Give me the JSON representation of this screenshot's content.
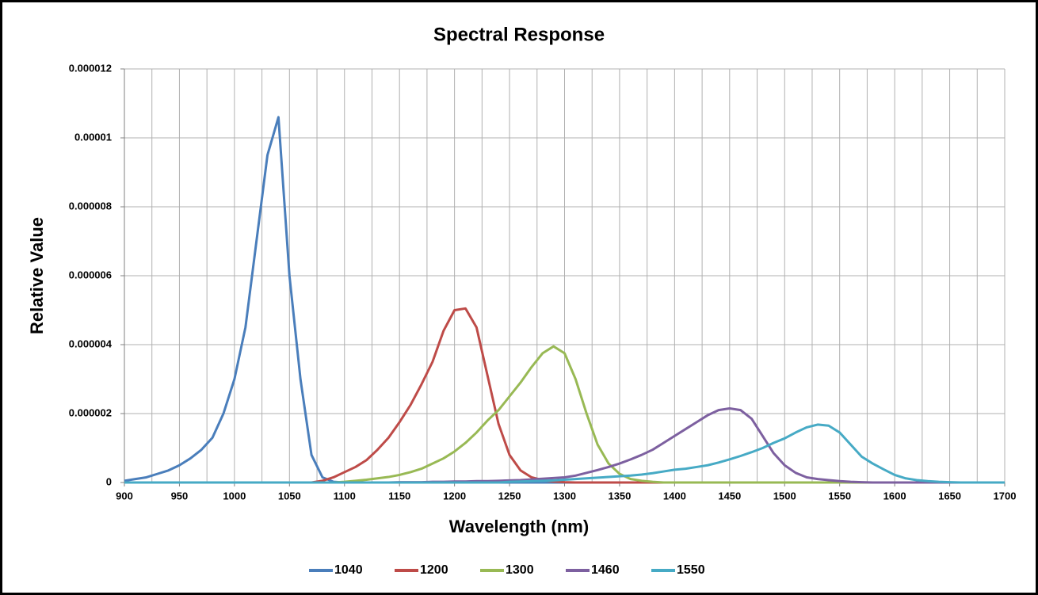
{
  "chart_data": {
    "type": "line",
    "title": "Spectral Response",
    "x_label": "Wavelength (nm)",
    "y_label": "Relative Value",
    "x": [
      900,
      910,
      920,
      930,
      940,
      950,
      960,
      970,
      980,
      990,
      1000,
      1010,
      1020,
      1030,
      1040,
      1050,
      1060,
      1070,
      1080,
      1090,
      1100,
      1110,
      1120,
      1130,
      1140,
      1150,
      1160,
      1170,
      1180,
      1190,
      1200,
      1210,
      1220,
      1230,
      1240,
      1250,
      1260,
      1270,
      1280,
      1290,
      1300,
      1310,
      1320,
      1330,
      1340,
      1350,
      1360,
      1370,
      1380,
      1390,
      1400,
      1410,
      1420,
      1430,
      1440,
      1450,
      1460,
      1470,
      1480,
      1490,
      1500,
      1510,
      1520,
      1530,
      1540,
      1550,
      1560,
      1570,
      1580,
      1590,
      1600,
      1610,
      1620,
      1630,
      1640,
      1650,
      1660,
      1670,
      1680,
      1690,
      1700
    ],
    "series": [
      {
        "name": "1040",
        "color": "#4a7ebb",
        "values": [
          5e-08,
          1e-07,
          1.5e-07,
          2.5e-07,
          3.5e-07,
          5e-07,
          7e-07,
          9.5e-07,
          1.3e-06,
          2e-06,
          3e-06,
          4.5e-06,
          7e-06,
          9.5e-06,
          1.06e-05,
          6e-06,
          3e-06,
          8e-07,
          1.5e-07,
          2e-08,
          0,
          0,
          0,
          0,
          0,
          0,
          0,
          0,
          0,
          0,
          0,
          0,
          0,
          0,
          0,
          0,
          0,
          0,
          0,
          0,
          0,
          0,
          0,
          0,
          0,
          0,
          0,
          0,
          0,
          0,
          0,
          0,
          0,
          0,
          0,
          0,
          0,
          0,
          0,
          0,
          0,
          0,
          0,
          0,
          0,
          0,
          0,
          0,
          0,
          0,
          0,
          0,
          0,
          0,
          0,
          0,
          0,
          0,
          0,
          0,
          0
        ]
      },
      {
        "name": "1200",
        "color": "#be4b48",
        "values": [
          0,
          0,
          0,
          0,
          0,
          0,
          0,
          0,
          0,
          0,
          0,
          0,
          0,
          0,
          0,
          0,
          0,
          0,
          5e-08,
          1.5e-07,
          3e-07,
          4.5e-07,
          6.5e-07,
          9.5e-07,
          1.3e-06,
          1.75e-06,
          2.25e-06,
          2.85e-06,
          3.5e-06,
          4.4e-06,
          5e-06,
          5.05e-06,
          4.5e-06,
          3.1e-06,
          1.7e-06,
          8e-07,
          3.5e-07,
          1.5e-07,
          7e-08,
          3e-08,
          1e-08,
          0,
          0,
          0,
          0,
          0,
          0,
          0,
          0,
          0,
          0,
          0,
          0,
          0,
          0,
          0,
          0,
          0,
          0,
          0,
          0,
          0,
          0,
          0,
          0,
          0,
          0,
          0,
          0,
          0,
          0,
          0,
          0,
          0,
          0,
          0,
          0,
          0,
          0,
          0,
          0
        ]
      },
      {
        "name": "1300",
        "color": "#98b954",
        "values": [
          0,
          0,
          0,
          0,
          0,
          0,
          0,
          0,
          0,
          0,
          0,
          0,
          0,
          0,
          0,
          0,
          0,
          0,
          0,
          0,
          2e-08,
          5e-08,
          8e-08,
          1.2e-07,
          1.6e-07,
          2.2e-07,
          3e-07,
          4e-07,
          5.5e-07,
          7e-07,
          9e-07,
          1.15e-06,
          1.45e-06,
          1.8e-06,
          2.1e-06,
          2.5e-06,
          2.9e-06,
          3.35e-06,
          3.75e-06,
          3.95e-06,
          3.75e-06,
          3e-06,
          2e-06,
          1.1e-06,
          5.5e-07,
          2.5e-07,
          1e-07,
          5e-08,
          2e-08,
          0,
          0,
          0,
          0,
          0,
          0,
          0,
          0,
          0,
          0,
          0,
          0,
          0,
          0,
          0,
          0,
          0,
          0,
          0,
          0,
          0,
          0,
          0,
          0,
          0,
          0,
          0,
          0,
          0,
          0,
          0,
          0
        ]
      },
      {
        "name": "1460",
        "color": "#7d60a0",
        "values": [
          0,
          0,
          0,
          0,
          0,
          0,
          0,
          0,
          0,
          0,
          0,
          0,
          0,
          0,
          0,
          0,
          0,
          0,
          0,
          0,
          0,
          0,
          0,
          0,
          0,
          1e-08,
          1e-08,
          1e-08,
          2e-08,
          2e-08,
          3e-08,
          3e-08,
          4e-08,
          4e-08,
          5e-08,
          6e-08,
          7e-08,
          9e-08,
          1.1e-07,
          1.3e-07,
          1.5e-07,
          2e-07,
          2.8e-07,
          3.6e-07,
          4.5e-07,
          5.5e-07,
          6.7e-07,
          8e-07,
          9.5e-07,
          1.15e-06,
          1.35e-06,
          1.55e-06,
          1.75e-06,
          1.95e-06,
          2.1e-06,
          2.15e-06,
          2.1e-06,
          1.85e-06,
          1.35e-06,
          8.5e-07,
          5e-07,
          2.8e-07,
          1.5e-07,
          1e-07,
          7e-08,
          4e-08,
          2e-08,
          1e-08,
          0,
          0,
          0,
          0,
          0,
          0,
          0,
          0,
          0,
          0,
          0,
          0,
          0
        ]
      },
      {
        "name": "1550",
        "color": "#46aac5",
        "values": [
          0,
          0,
          0,
          0,
          0,
          0,
          0,
          0,
          0,
          0,
          0,
          0,
          0,
          0,
          0,
          0,
          0,
          0,
          0,
          0,
          0,
          0,
          0,
          0,
          0,
          0,
          0,
          0,
          0,
          0,
          0,
          0,
          0,
          0,
          0,
          2e-08,
          3e-08,
          4e-08,
          5e-08,
          6e-08,
          8e-08,
          1e-07,
          1.2e-07,
          1.4e-07,
          1.6e-07,
          1.8e-07,
          2e-07,
          2.3e-07,
          2.7e-07,
          3.2e-07,
          3.7e-07,
          4e-07,
          4.5e-07,
          5e-07,
          5.8e-07,
          6.7e-07,
          7.7e-07,
          8.8e-07,
          1e-06,
          1.15e-06,
          1.28e-06,
          1.45e-06,
          1.6e-06,
          1.68e-06,
          1.65e-06,
          1.45e-06,
          1.1e-06,
          7.5e-07,
          5.5e-07,
          3.8e-07,
          2.2e-07,
          1.2e-07,
          7e-08,
          4e-08,
          2e-08,
          1e-08,
          0,
          0,
          0,
          0,
          0
        ]
      }
    ],
    "xlim": [
      900,
      1700
    ],
    "xticks": [
      900,
      950,
      1000,
      1050,
      1100,
      1150,
      1200,
      1250,
      1300,
      1350,
      1400,
      1450,
      1500,
      1550,
      1600,
      1650,
      1700
    ],
    "minor_xticks": [
      925,
      975,
      1025,
      1075,
      1125,
      1175,
      1225,
      1275,
      1325,
      1375,
      1425,
      1475,
      1525,
      1575,
      1625,
      1675
    ],
    "ylim": [
      0,
      1.2e-05
    ],
    "yticks": [
      0,
      2e-06,
      4e-06,
      6e-06,
      8e-06,
      1e-05,
      1.2e-05
    ],
    "grid": true,
    "legend": "bottom"
  }
}
